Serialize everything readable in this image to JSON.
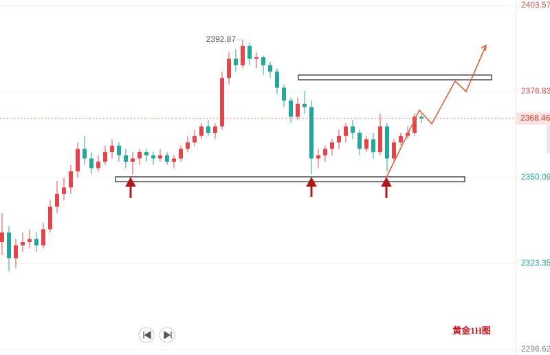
{
  "chart_data": {
    "type": "candlestick",
    "title": "黄金1H图",
    "open": [
      2330,
      2333,
      2325,
      2329,
      2330,
      2331,
      2329,
      2334,
      2341,
      2345,
      2347,
      2352,
      2359,
      2356,
      2353,
      2355,
      2358,
      2360,
      2357,
      2355,
      2356,
      2358,
      2357,
      2356,
      2357,
      2355,
      2356,
      2359,
      2361,
      2363,
      2366,
      2364,
      2366,
      2381,
      2387,
      2385,
      2391,
      2387,
      2387.5,
      2385,
      2383,
      2378,
      2374,
      2369,
      2373,
      2372,
      2356,
      2357,
      2359,
      2361,
      2363,
      2366,
      2364,
      2359,
      2362,
      2358,
      2366,
      2356,
      2361,
      2363,
      2364,
      2369
    ],
    "high": [
      2339,
      2335,
      2331,
      2333,
      2334,
      2333,
      2336,
      2343,
      2349,
      2350,
      2354,
      2361,
      2363,
      2358,
      2357,
      2360,
      2362,
      2361,
      2359,
      2358,
      2359,
      2359,
      2358,
      2359,
      2358,
      2357,
      2360,
      2363,
      2365,
      2367,
      2368,
      2367,
      2383,
      2389,
      2390,
      2392.87,
      2392,
      2389,
      2388,
      2386,
      2384,
      2379,
      2375,
      2375,
      2377,
      2374,
      2359,
      2360,
      2362,
      2365,
      2367,
      2368,
      2365,
      2363,
      2364,
      2370,
      2367,
      2362,
      2364,
      2366,
      2370,
      2370
    ],
    "low": [
      2326,
      2321,
      2322,
      2327,
      2328,
      2327,
      2328,
      2333,
      2339,
      2343,
      2345,
      2350,
      2354,
      2351,
      2352,
      2354,
      2356,
      2355,
      2353,
      2351,
      2354,
      2355,
      2354,
      2355,
      2354,
      2353,
      2355,
      2358,
      2360,
      2362,
      2363,
      2362,
      2365,
      2379,
      2383,
      2384,
      2385,
      2384,
      2382,
      2381,
      2376,
      2372,
      2367,
      2368,
      2370,
      2351,
      2353,
      2355,
      2357,
      2359,
      2361,
      2362,
      2357,
      2358,
      2356,
      2357,
      2352,
      2355,
      2360,
      2362,
      2363,
      2367
    ],
    "close": [
      2333,
      2325,
      2329,
      2330,
      2331,
      2329,
      2334,
      2341,
      2345,
      2347,
      2352,
      2359,
      2356,
      2353,
      2355,
      2358,
      2360,
      2357,
      2355,
      2356,
      2358,
      2357,
      2356,
      2357,
      2355,
      2356,
      2359,
      2361,
      2363,
      2366,
      2364,
      2366,
      2381,
      2387,
      2385,
      2391,
      2387,
      2387.5,
      2385,
      2383,
      2378,
      2374,
      2369,
      2373,
      2372,
      2356,
      2357,
      2359,
      2361,
      2363,
      2366,
      2364,
      2359,
      2362,
      2358,
      2366,
      2356,
      2361,
      2363,
      2364,
      2369,
      2368.46
    ],
    "up_color": "#e0474c",
    "down_color": "#26a69a",
    "high_label": 2392.87,
    "last_price": 2368.46,
    "ylim": [
      2294.91,
      2405.28
    ],
    "yticks": [
      2403.57,
      2376.83,
      2350.09,
      2323.35,
      2296.62
    ],
    "grid": true
  }
}
